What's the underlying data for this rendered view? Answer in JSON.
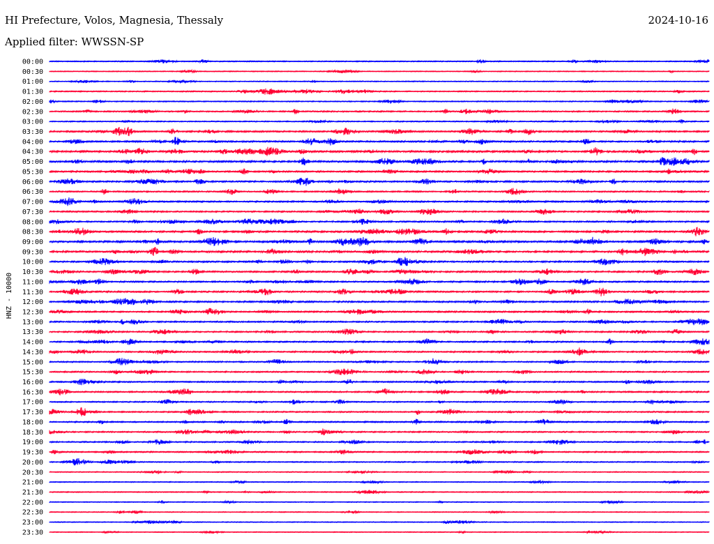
{
  "header": {
    "title": "HI Prefecture, Volos, Magnesia, Thessaly",
    "date": "2024-10-16",
    "filter": "Applied filter: WWSSN-SP"
  },
  "chart_data": {
    "type": "line",
    "title": "HI Prefecture, Volos, Magnesia, Thessaly",
    "ylabel": "HNZ - 10000",
    "xlabel": "",
    "series_colors": [
      "#0000ff",
      "#ff0033"
    ],
    "rows": [
      "00:00",
      "00:30",
      "01:00",
      "01:30",
      "02:00",
      "02:30",
      "03:00",
      "03:30",
      "04:00",
      "04:30",
      "05:00",
      "05:30",
      "06:00",
      "06:30",
      "07:00",
      "07:30",
      "08:00",
      "08:30",
      "09:00",
      "09:30",
      "10:00",
      "10:30",
      "11:00",
      "11:30",
      "12:00",
      "12:30",
      "13:00",
      "13:30",
      "14:00",
      "14:30",
      "15:00",
      "15:30",
      "16:00",
      "16:30",
      "17:00",
      "17:30",
      "18:00",
      "18:30",
      "19:00",
      "19:30",
      "20:00",
      "20:30",
      "21:00",
      "21:30",
      "22:00",
      "22:30",
      "23:00",
      "23:30"
    ],
    "activity": [
      0.25,
      0.15,
      0.2,
      0.3,
      0.25,
      0.45,
      0.3,
      0.6,
      0.6,
      0.85,
      0.75,
      0.6,
      0.6,
      0.5,
      0.55,
      0.5,
      0.55,
      0.7,
      0.85,
      0.8,
      0.6,
      0.6,
      0.55,
      0.6,
      0.6,
      0.55,
      0.5,
      0.5,
      0.5,
      0.5,
      0.45,
      0.45,
      0.45,
      0.5,
      0.4,
      0.45,
      0.45,
      0.45,
      0.4,
      0.4,
      0.3,
      0.2,
      0.15,
      0.2,
      0.15,
      0.15,
      0.15,
      0.1
    ],
    "grid": false,
    "legend": "none"
  }
}
